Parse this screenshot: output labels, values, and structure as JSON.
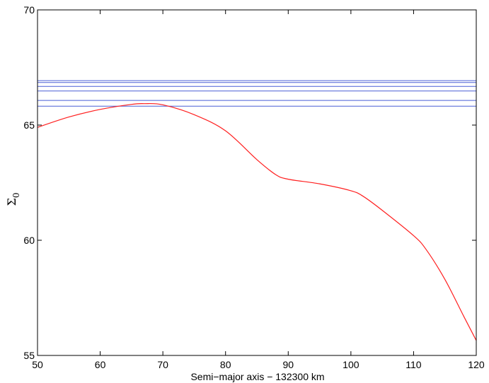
{
  "chart_data": {
    "type": "line",
    "title": "",
    "xlabel": "Semi−major axis − 132300 km",
    "ylabel": "Σ",
    "ylabel_subscript": "0",
    "xlim": [
      50,
      120
    ],
    "ylim": [
      55,
      70
    ],
    "xticks": [
      50,
      60,
      70,
      80,
      90,
      100,
      110,
      120
    ],
    "yticks": [
      55,
      60,
      65,
      70
    ],
    "grid": false,
    "colors": {
      "horizontal_lines": "#4a5fd6",
      "curve": "#ff2020",
      "axes": "#000000"
    },
    "series": [
      {
        "kind": "hline",
        "color": "#4a5fd6",
        "y": 66.93
      },
      {
        "kind": "hline",
        "color": "#4a5fd6",
        "y": 66.85
      },
      {
        "kind": "hline",
        "color": "#4a5fd6",
        "y": 66.68
      },
      {
        "kind": "hline",
        "color": "#4a5fd6",
        "y": 66.48
      },
      {
        "kind": "hline",
        "color": "#4a5fd6",
        "y": 66.07
      },
      {
        "kind": "hline",
        "color": "#4a5fd6",
        "y": 65.82
      },
      {
        "kind": "curve",
        "color": "#ff2020",
        "x": [
          50,
          55,
          60,
          65,
          67,
          70,
          75,
          80,
          85,
          88,
          90,
          95,
          100,
          102,
          105,
          110,
          112,
          115,
          118,
          120
        ],
        "y": [
          64.9,
          65.35,
          65.68,
          65.9,
          65.93,
          65.88,
          65.45,
          64.75,
          63.5,
          62.85,
          62.65,
          62.45,
          62.15,
          61.9,
          61.3,
          60.2,
          59.6,
          58.3,
          56.7,
          55.65
        ]
      }
    ]
  }
}
